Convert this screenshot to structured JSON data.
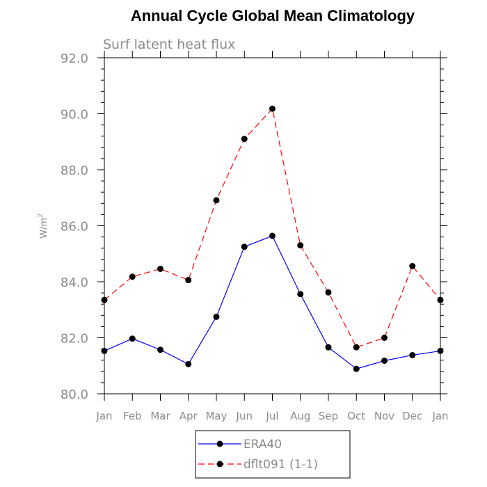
{
  "chart_data": {
    "type": "line",
    "title": "Annual Cycle Global Mean Climatology",
    "subtitle": "Surf latent heat flux",
    "ylabel": "W/m",
    "ylabel_superscript": "2",
    "xlabel": "",
    "categories": [
      "Jan",
      "Feb",
      "Mar",
      "Apr",
      "May",
      "Jun",
      "Jul",
      "Aug",
      "Sep",
      "Oct",
      "Nov",
      "Dec",
      "Jan"
    ],
    "ylim": [
      80.0,
      92.0
    ],
    "yticks": [
      "80.0",
      "82.0",
      "84.0",
      "86.0",
      "88.0",
      "90.0",
      "92.0"
    ],
    "grid": false,
    "legend_position": "bottom-center",
    "series": [
      {
        "name": "ERA40",
        "color": "#0000ff",
        "dash": "solid",
        "values": [
          81.53,
          81.97,
          81.57,
          81.06,
          82.75,
          85.25,
          85.64,
          83.56,
          81.66,
          80.89,
          81.18,
          81.38,
          81.53
        ]
      },
      {
        "name": "dflt091 (1-1)",
        "color": "#ff0000",
        "dash": "dashed",
        "values": [
          83.35,
          84.18,
          84.46,
          84.06,
          86.91,
          89.1,
          90.18,
          85.3,
          83.62,
          81.66,
          82.0,
          84.56,
          83.35
        ]
      }
    ]
  }
}
